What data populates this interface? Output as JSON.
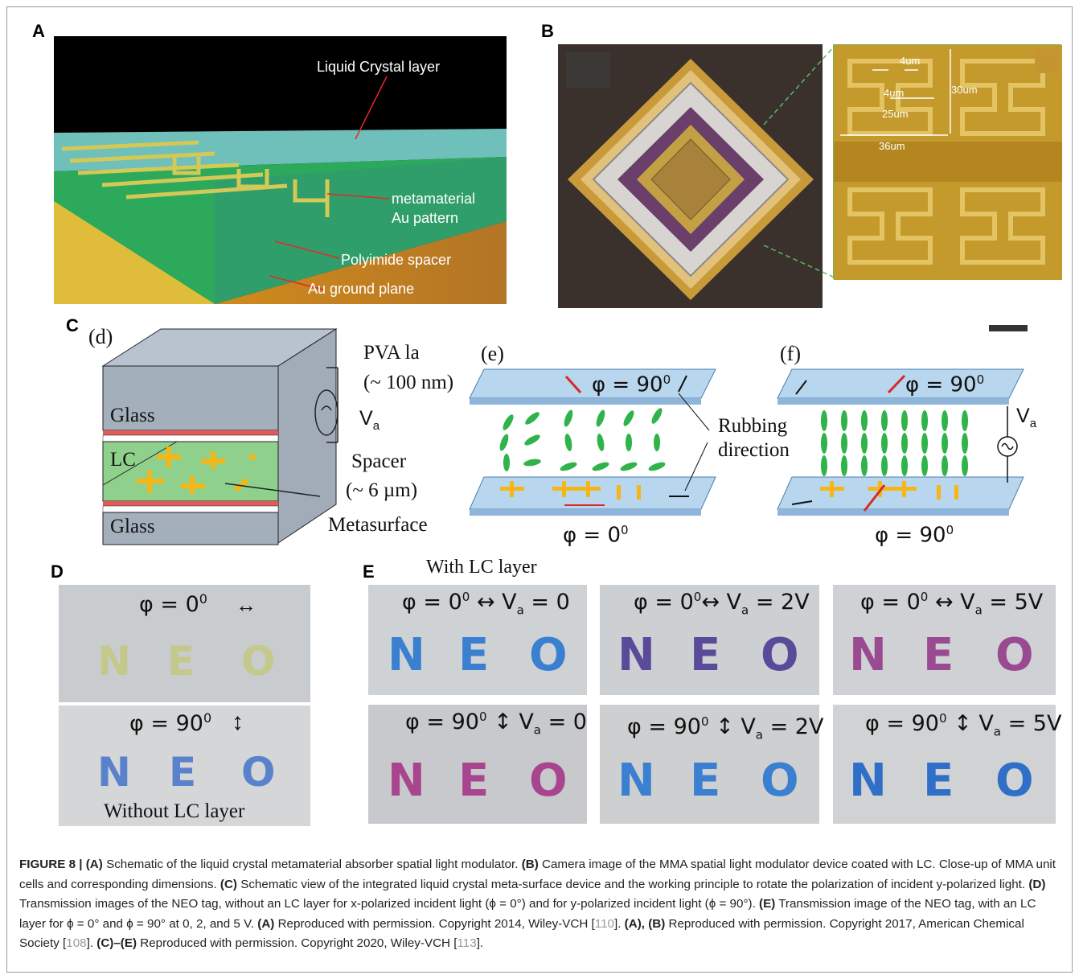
{
  "panels": {
    "a": {
      "letter": "A",
      "labels": {
        "lc": "Liquid Crystal layer",
        "meta1": "metamaterial",
        "meta2": "Au pattern",
        "poly": "Polyimide spacer",
        "ground": "Au ground plane"
      }
    },
    "b": {
      "letter": "B",
      "dims": {
        "d1": "4um",
        "d2": "4um",
        "d3": "30um",
        "d4": "25um",
        "d5": "36um"
      }
    },
    "c": {
      "letter": "C",
      "d": {
        "tag": "(d)",
        "glass_top": "Glass",
        "lc": "LC",
        "glass_bottom": "Glass",
        "pva1": "PVA la",
        "pva2": "(~ 100 nm)",
        "va": "V",
        "va_sub": "a",
        "spacer1": "Spacer",
        "spacer2": "(~ 6 µm)",
        "meta": "Metasurface"
      },
      "e": {
        "tag": "(e)",
        "phi_top": "φ = 90",
        "phi_top_sup": "0",
        "rub1": "Rubbing",
        "rub2": "direction",
        "phi_bottom": "φ = 0",
        "phi_bottom_sup": "0"
      },
      "f": {
        "tag": "(f)",
        "phi_top": "φ = 90",
        "phi_top_sup": "0",
        "va": "V",
        "va_sub": "a",
        "phi_bottom": "φ = 90",
        "phi_bottom_sup": "0"
      }
    },
    "d": {
      "letter": "D",
      "top_phi": "φ = 0",
      "top_sup": "0",
      "bottom_phi": "φ = 90",
      "bottom_sup": "0",
      "neo_letters": [
        "N",
        "E",
        "O"
      ],
      "footer": "Without LC layer"
    },
    "e": {
      "letter": "E",
      "header": "With LC layer",
      "cells": [
        {
          "phi": "φ = 0",
          "sup": "0",
          "va": "= 0"
        },
        {
          "phi": "φ = 0",
          "sup": "0",
          "va": "= 2V"
        },
        {
          "phi": "φ = 0",
          "sup": "0",
          "va": "= 5V"
        },
        {
          "phi": "φ = 90",
          "sup": "0",
          "va": "= 0"
        },
        {
          "phi": "φ = 90",
          "sup": "0",
          "va": "= 2V"
        },
        {
          "phi": "φ = 90",
          "sup": "0",
          "va": "= 5V"
        }
      ],
      "va_letter": "V",
      "va_sub": "a"
    }
  },
  "caption": {
    "fig": "FIGURE 8 |",
    "a1": "(A)",
    "t1": " Schematic of the liquid crystal metamaterial absorber spatial light modulator. ",
    "b1": "(B)",
    "t2": " Camera image of the MMA spatial light modulator device coated with LC. Close-up of MMA unit cells and corresponding dimensions. ",
    "c1": "(C)",
    "t3": " Schematic view of the integrated liquid crystal meta-surface device and the working principle to rotate the polarization of incident y-polarized light. ",
    "d1": "(D)",
    "t4": " Transmission images of the NEO tag, without an LC layer for x-polarized incident light (ϕ = 0°) and for y-polarized incident light (ϕ = 90°). ",
    "e1": "(E)",
    "t5": " Transmission image of the NEO tag, with an LC layer for ϕ = 0° and ϕ = 90° at 0, 2, and 5 V. ",
    "a2": "(A)",
    "t6": " Reproduced with permission. Copyright 2014, Wiley-VCH [",
    "r1": "110",
    "t7": "]. ",
    "a3": "(A), (B)",
    "t8": " Reproduced with permission. Copyright 2017, American Chemical Society [",
    "r2": "108",
    "t9": "]. ",
    "ce": "(C)–(E)",
    "t10": " Reproduced with permission. Copyright 2020, Wiley-VCH [",
    "r3": "113",
    "t11": "]."
  },
  "colors": {
    "au": "#f5b616",
    "lc_green": "#2fb34a",
    "glass_blue": "#a9c9e6",
    "neo_blue": "#3a7fd0",
    "neo_purple": "#6a4aa8",
    "neo_magenta": "#a8458e"
  }
}
